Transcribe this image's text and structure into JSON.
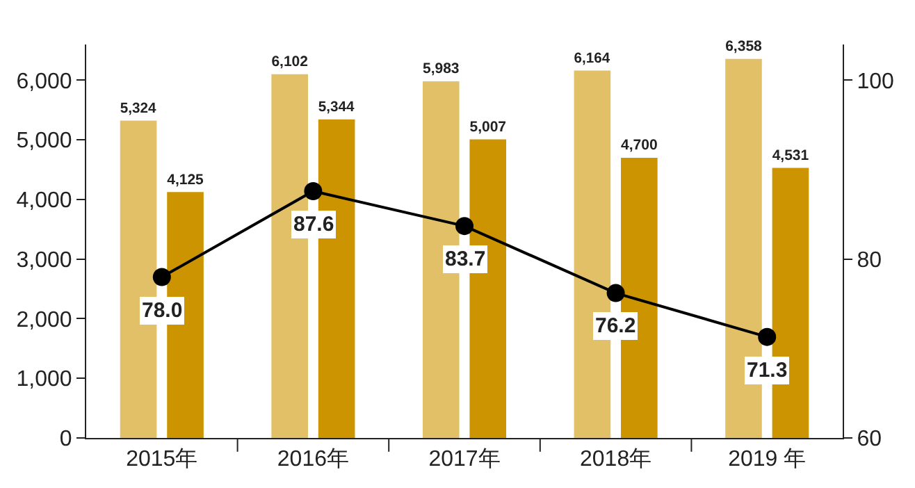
{
  "chart_data": {
    "type": "bar",
    "categories": [
      "2015年",
      "2016年",
      "2017年",
      "2018年",
      "2019 年"
    ],
    "series": [
      {
        "color": "#e2c068",
        "values": [
          5324,
          6102,
          5983,
          6164,
          6358
        ],
        "value_labels": [
          "5,324",
          "6,102",
          "5,983",
          "6,164",
          "6,358"
        ]
      },
      {
        "color": "#cc9400",
        "values": [
          4125,
          5344,
          5007,
          4700,
          4531
        ],
        "value_labels": [
          "4,125",
          "5,344",
          "5,007",
          "4,700",
          "4,531"
        ]
      },
      {
        "type": "line",
        "axis": "y2",
        "color": "#000000",
        "marker": "circle",
        "values": [
          78.0,
          87.6,
          83.7,
          76.2,
          71.3
        ],
        "value_labels": [
          "78.0",
          "87.6",
          "83.7",
          "76.2",
          "71.3"
        ]
      }
    ],
    "ylim": [
      0,
      6600
    ],
    "yticks": [
      {
        "value": 0,
        "label": "0"
      },
      {
        "value": 1000,
        "label": "1,000"
      },
      {
        "value": 2000,
        "label": "2,000"
      },
      {
        "value": 3000,
        "label": "3,000"
      },
      {
        "value": 4000,
        "label": "4,000"
      },
      {
        "value": 5000,
        "label": "5,000"
      },
      {
        "value": 6000,
        "label": "6,000"
      }
    ],
    "y2lim": [
      60,
      104
    ],
    "y2ticks": [
      60,
      80,
      100
    ],
    "legend": false
  }
}
